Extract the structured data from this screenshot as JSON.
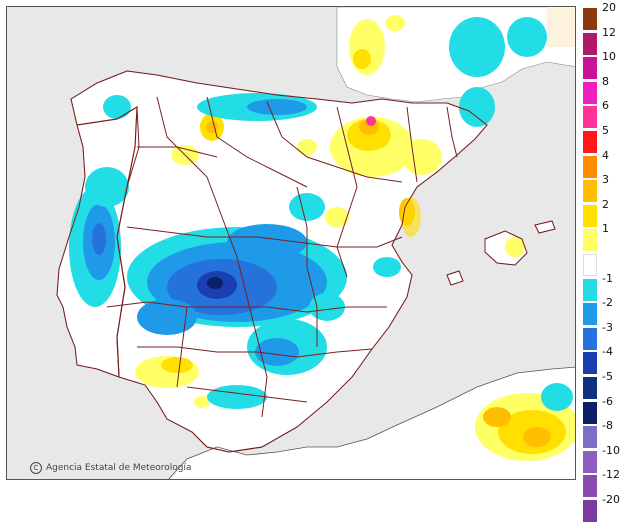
{
  "credit": {
    "agency": "Agencia Estatal de Meteorología",
    "logo": "aemet",
    "copyright_symbol": "C"
  },
  "colors": {
    "sea": "#e8e8e8",
    "land": "#ffffff",
    "border": "#7a1f1f",
    "france_beige": "#fdf3dc"
  },
  "legend": {
    "warm": [
      {
        "label": "20",
        "color": "#8b3a0f"
      },
      {
        "label": "12",
        "color": "#b0186a"
      },
      {
        "label": "10",
        "color": "#cc1199"
      },
      {
        "label": "8",
        "color": "#f020c0"
      },
      {
        "label": "6",
        "color": "#ff3399"
      },
      {
        "label": "5",
        "color": "#ff1a1a"
      },
      {
        "label": "4",
        "color": "#ff8c00"
      },
      {
        "label": "3",
        "color": "#ffbe00"
      },
      {
        "label": "2",
        "color": "#ffe000"
      },
      {
        "label": "1",
        "color": "#ffff66"
      }
    ],
    "neutral": {
      "color": "#ffffff"
    },
    "cold": [
      {
        "label": "-1",
        "color": "#22dde6"
      },
      {
        "label": "-2",
        "color": "#1e9ae8"
      },
      {
        "label": "-3",
        "color": "#2672dd"
      },
      {
        "label": "-4",
        "color": "#1a3fb0"
      },
      {
        "label": "-5",
        "color": "#123080"
      },
      {
        "label": "-6",
        "color": "#0b1f6b"
      },
      {
        "label": "-8",
        "color": "#7a70c8"
      },
      {
        "label": "-10",
        "color": "#8c5ec0"
      },
      {
        "label": "-12",
        "color": "#8a48b2"
      },
      {
        "label": "-20",
        "color": "#7b3aa0"
      }
    ]
  }
}
